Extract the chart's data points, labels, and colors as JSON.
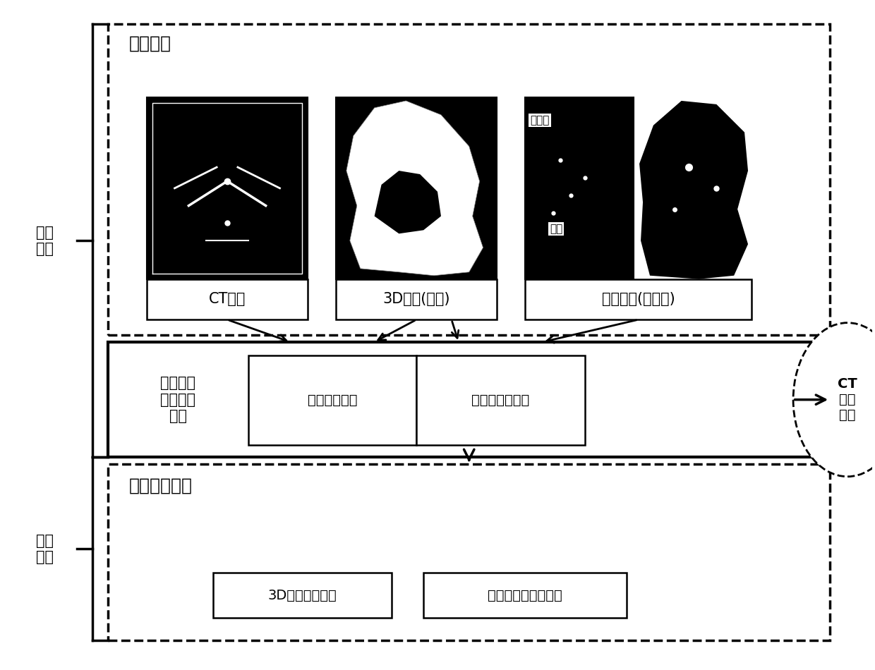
{
  "bg_color": "#ffffff",
  "training_data_label": "训练数据",
  "network_training_label": "网络\n训练",
  "network_testing_label": "网络\n测试",
  "ct_label": "CT图像",
  "shape3d_label": "3D形状(标签)",
  "surgery_path_label": "手术路径(特征点)",
  "direction_point_label": "方向点",
  "entry_point_label": "入点",
  "auto_plan_label": "手术路径\n自动规划\n网络",
  "shape_seg_label": "形状分割网络",
  "path_loc_label": "路径点定位网络",
  "ct_test_label": "CT\n测试\n图像",
  "test_output_label": "测试输出数据",
  "shape3d_out_label": "3D形状（标签）",
  "surgery_path_out_label": "手术路径（特征点）"
}
